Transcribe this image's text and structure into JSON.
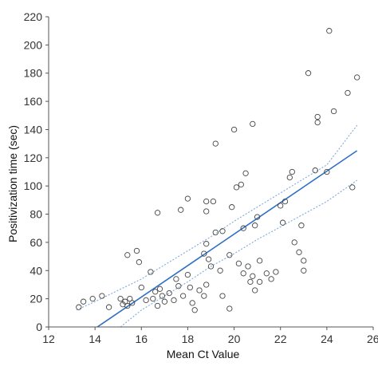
{
  "chart_data": {
    "type": "scatter",
    "title": "",
    "xlabel": "Mean Ct Value",
    "ylabel": "Positivization time (sec)",
    "xlim": [
      12,
      26
    ],
    "ylim": [
      0,
      220
    ],
    "xticks": [
      12,
      14,
      16,
      18,
      20,
      22,
      24,
      26
    ],
    "xtick_labels": [
      "12",
      "14",
      "16",
      "18",
      "20",
      "22",
      "24",
      "26"
    ],
    "yticks": [
      0,
      20,
      40,
      60,
      80,
      100,
      120,
      140,
      160,
      180,
      200,
      220
    ],
    "ytick_labels": [
      "0",
      "20",
      "40",
      "60",
      "80",
      "100",
      "120",
      "140",
      "160",
      "180",
      "200",
      "220"
    ],
    "grid": false,
    "legend": "none",
    "colors": {
      "points": "#444444",
      "fit_line": "#2f6fc4",
      "ci_band": "#7fa9dd",
      "axis": "#555555"
    },
    "points": [
      {
        "x": 13.3,
        "y": 14
      },
      {
        "x": 13.5,
        "y": 18
      },
      {
        "x": 13.9,
        "y": 20
      },
      {
        "x": 14.3,
        "y": 22
      },
      {
        "x": 14.6,
        "y": 14
      },
      {
        "x": 15.1,
        "y": 20
      },
      {
        "x": 15.2,
        "y": 16
      },
      {
        "x": 15.3,
        "y": 18
      },
      {
        "x": 15.4,
        "y": 15
      },
      {
        "x": 15.5,
        "y": 20
      },
      {
        "x": 15.6,
        "y": 17
      },
      {
        "x": 15.4,
        "y": 51
      },
      {
        "x": 15.8,
        "y": 54
      },
      {
        "x": 15.9,
        "y": 46
      },
      {
        "x": 16.0,
        "y": 28
      },
      {
        "x": 16.2,
        "y": 19
      },
      {
        "x": 16.4,
        "y": 39
      },
      {
        "x": 16.5,
        "y": 20
      },
      {
        "x": 16.6,
        "y": 25
      },
      {
        "x": 16.7,
        "y": 15
      },
      {
        "x": 16.8,
        "y": 27
      },
      {
        "x": 16.9,
        "y": 22
      },
      {
        "x": 16.7,
        "y": 81
      },
      {
        "x": 17.0,
        "y": 18
      },
      {
        "x": 17.2,
        "y": 24
      },
      {
        "x": 17.4,
        "y": 19
      },
      {
        "x": 17.5,
        "y": 34
      },
      {
        "x": 17.6,
        "y": 29
      },
      {
        "x": 17.8,
        "y": 22
      },
      {
        "x": 17.7,
        "y": 83
      },
      {
        "x": 18.0,
        "y": 91
      },
      {
        "x": 18.0,
        "y": 37
      },
      {
        "x": 18.1,
        "y": 28
      },
      {
        "x": 18.2,
        "y": 17
      },
      {
        "x": 18.3,
        "y": 12
      },
      {
        "x": 18.5,
        "y": 26
      },
      {
        "x": 18.7,
        "y": 22
      },
      {
        "x": 18.8,
        "y": 30
      },
      {
        "x": 18.7,
        "y": 52
      },
      {
        "x": 18.9,
        "y": 48
      },
      {
        "x": 18.8,
        "y": 59
      },
      {
        "x": 18.8,
        "y": 89
      },
      {
        "x": 18.8,
        "y": 82
      },
      {
        "x": 19.1,
        "y": 89
      },
      {
        "x": 19.2,
        "y": 130
      },
      {
        "x": 19.0,
        "y": 43
      },
      {
        "x": 19.2,
        "y": 67
      },
      {
        "x": 19.4,
        "y": 40
      },
      {
        "x": 19.5,
        "y": 68
      },
      {
        "x": 19.5,
        "y": 22
      },
      {
        "x": 19.8,
        "y": 13
      },
      {
        "x": 19.8,
        "y": 51
      },
      {
        "x": 19.9,
        "y": 85
      },
      {
        "x": 20.0,
        "y": 140
      },
      {
        "x": 20.1,
        "y": 99
      },
      {
        "x": 20.2,
        "y": 45
      },
      {
        "x": 20.3,
        "y": 101
      },
      {
        "x": 20.4,
        "y": 70
      },
      {
        "x": 20.4,
        "y": 38
      },
      {
        "x": 20.5,
        "y": 109
      },
      {
        "x": 20.6,
        "y": 43
      },
      {
        "x": 20.7,
        "y": 32
      },
      {
        "x": 20.8,
        "y": 144
      },
      {
        "x": 20.8,
        "y": 36
      },
      {
        "x": 20.9,
        "y": 72
      },
      {
        "x": 21.0,
        "y": 78
      },
      {
        "x": 20.9,
        "y": 26
      },
      {
        "x": 21.1,
        "y": 47
      },
      {
        "x": 21.1,
        "y": 32
      },
      {
        "x": 21.4,
        "y": 38
      },
      {
        "x": 21.6,
        "y": 34
      },
      {
        "x": 21.8,
        "y": 39
      },
      {
        "x": 22.0,
        "y": 86
      },
      {
        "x": 22.1,
        "y": 74
      },
      {
        "x": 22.2,
        "y": 89
      },
      {
        "x": 22.4,
        "y": 106
      },
      {
        "x": 22.5,
        "y": 110
      },
      {
        "x": 22.6,
        "y": 60
      },
      {
        "x": 22.8,
        "y": 53
      },
      {
        "x": 22.9,
        "y": 72
      },
      {
        "x": 23.0,
        "y": 40
      },
      {
        "x": 23.0,
        "y": 47
      },
      {
        "x": 23.2,
        "y": 180
      },
      {
        "x": 23.5,
        "y": 111
      },
      {
        "x": 23.6,
        "y": 145
      },
      {
        "x": 23.6,
        "y": 149
      },
      {
        "x": 24.0,
        "y": 110
      },
      {
        "x": 24.1,
        "y": 210
      },
      {
        "x": 24.3,
        "y": 153
      },
      {
        "x": 24.9,
        "y": 166
      },
      {
        "x": 25.1,
        "y": 99
      },
      {
        "x": 25.3,
        "y": 177
      }
    ],
    "fit_line": {
      "x": [
        14.1,
        25.3
      ],
      "y": [
        0,
        125
      ]
    },
    "ci_upper": {
      "x": [
        13.2,
        14.0,
        15.0,
        16.0,
        17.0,
        18.0,
        19.0,
        20.0,
        21.0,
        22.0,
        23.0,
        24.0,
        25.3
      ],
      "y": [
        12,
        18,
        26,
        34,
        44,
        54,
        64,
        75,
        85,
        95,
        105,
        115,
        143
      ]
    },
    "ci_lower": {
      "x": [
        15.1,
        16.0,
        17.0,
        18.0,
        19.0,
        20.0,
        21.0,
        22.0,
        23.0,
        24.0,
        25.3
      ],
      "y": [
        0,
        12,
        22,
        32,
        43,
        52,
        62,
        71,
        80,
        89,
        104
      ]
    }
  }
}
